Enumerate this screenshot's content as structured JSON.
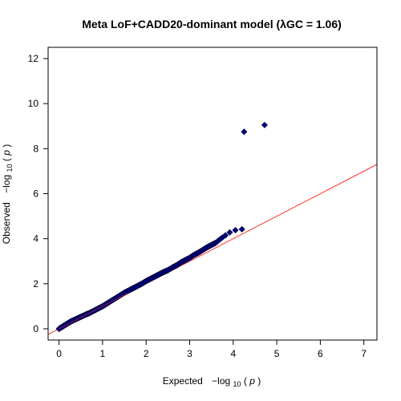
{
  "chart_data": {
    "type": "scatter",
    "title": "Meta LoF+CADD20-dominant model (λGC = 1.06)",
    "xlabel": {
      "prefix": "Expected",
      "func": "−log",
      "sub": "10",
      "arg": "p"
    },
    "ylabel": {
      "prefix": "Observed",
      "func": "−log",
      "sub": "10",
      "arg": "p"
    },
    "xlim": [
      -0.25,
      7.3
    ],
    "ylim": [
      -0.5,
      12.5
    ],
    "x_ticks": [
      "0",
      "1",
      "2",
      "3",
      "4",
      "5",
      "6",
      "7"
    ],
    "y_ticks": [
      "0",
      "2",
      "4",
      "6",
      "8",
      "10",
      "12"
    ],
    "reference_line": {
      "intercept": 0,
      "slope": 1,
      "color": "#ff3333"
    },
    "point_color": "#000080",
    "point_stroke": "#000033",
    "points": [
      [
        0.0,
        0.0
      ],
      [
        0.05,
        0.06
      ],
      [
        0.1,
        0.12
      ],
      [
        0.15,
        0.18
      ],
      [
        0.2,
        0.24
      ],
      [
        0.25,
        0.3
      ],
      [
        0.3,
        0.35
      ],
      [
        0.4,
        0.44
      ],
      [
        0.5,
        0.53
      ],
      [
        0.6,
        0.62
      ],
      [
        0.7,
        0.7
      ],
      [
        0.8,
        0.8
      ],
      [
        0.9,
        0.9
      ],
      [
        1.0,
        1.0
      ],
      [
        1.1,
        1.12
      ],
      [
        1.2,
        1.24
      ],
      [
        1.3,
        1.36
      ],
      [
        1.4,
        1.48
      ],
      [
        1.5,
        1.6
      ],
      [
        1.6,
        1.7
      ],
      [
        1.7,
        1.8
      ],
      [
        1.8,
        1.9
      ],
      [
        1.9,
        2.0
      ],
      [
        2.0,
        2.12
      ],
      [
        2.1,
        2.22
      ],
      [
        2.2,
        2.32
      ],
      [
        2.3,
        2.42
      ],
      [
        2.4,
        2.52
      ],
      [
        2.5,
        2.6
      ],
      [
        2.6,
        2.72
      ],
      [
        2.7,
        2.82
      ],
      [
        2.8,
        2.95
      ],
      [
        2.9,
        3.05
      ],
      [
        3.0,
        3.15
      ],
      [
        3.1,
        3.28
      ],
      [
        3.2,
        3.38
      ],
      [
        3.3,
        3.5
      ],
      [
        3.4,
        3.62
      ],
      [
        3.5,
        3.72
      ],
      [
        3.6,
        3.82
      ],
      [
        3.65,
        3.9
      ],
      [
        3.7,
        3.98
      ],
      [
        3.75,
        4.05
      ],
      [
        3.82,
        4.15
      ],
      [
        3.92,
        4.28
      ],
      [
        4.05,
        4.38
      ],
      [
        4.2,
        4.42
      ],
      [
        4.25,
        8.75
      ],
      [
        4.72,
        9.05
      ]
    ]
  }
}
